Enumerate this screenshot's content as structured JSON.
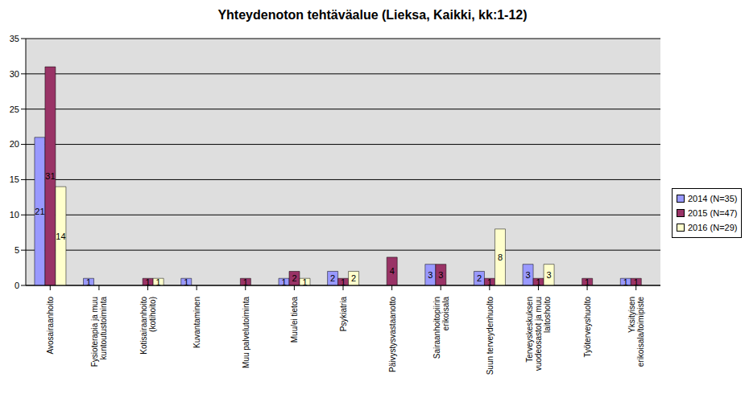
{
  "chart_data": {
    "type": "bar",
    "title": "Yhteydenoton tehtäväalue (Lieksa, Kaikki, kk:1-12)",
    "categories": [
      "Avosairaanhoito",
      "Fysioterapia ja muu kuntoutustoiminta",
      "Kotisairaanhoito (kotihoito)",
      "Kuvantaminen",
      "Muu palvelutoiminta",
      "Muu/ei tietoa",
      "Psykiatria",
      "Päivystysvastaanotto",
      "Sairaanhoitopiirin erikoisala",
      "Suun terveydenhuolto",
      "Terveyskeskuksen vuodeosastot ja muu laitoshoito",
      "Työterveyshuolto",
      "Yksityisen erikoisala/toimipiste"
    ],
    "series": [
      {
        "name": "2014 (N=35)",
        "color": "#9999ff",
        "values": [
          21,
          1,
          0,
          1,
          0,
          1,
          2,
          0,
          3,
          2,
          3,
          0,
          1
        ]
      },
      {
        "name": "2015 (N=47)",
        "color": "#993366",
        "values": [
          31,
          0,
          1,
          0,
          1,
          2,
          1,
          4,
          3,
          1,
          1,
          1,
          1
        ]
      },
      {
        "name": "2016 (N=29)",
        "color": "#ffffcc",
        "values": [
          14,
          0,
          1,
          0,
          0,
          1,
          2,
          0,
          0,
          8,
          3,
          0,
          0
        ]
      }
    ],
    "ylim": [
      0,
      35
    ],
    "yticks": [
      0,
      5,
      10,
      15,
      20,
      25,
      30,
      35
    ],
    "grid": true,
    "data_labels": true,
    "legend": "right"
  }
}
